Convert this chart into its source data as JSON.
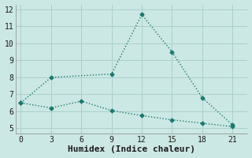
{
  "xlabel": "Humidex (Indice chaleur)",
  "line1_x": [
    0,
    3,
    9,
    12,
    15,
    18,
    21
  ],
  "line1_y": [
    6.5,
    8.0,
    8.2,
    11.7,
    9.5,
    6.8,
    5.2
  ],
  "line2_x": [
    0,
    3,
    6,
    9,
    12,
    15,
    18,
    21
  ],
  "line2_y": [
    6.5,
    6.2,
    6.6,
    6.05,
    5.75,
    5.5,
    5.3,
    5.1
  ],
  "line_color": "#1a7a6e",
  "bg_color": "#cce8e4",
  "grid_color": "#aacfcc",
  "xlim": [
    -0.5,
    22.5
  ],
  "ylim": [
    4.7,
    12.3
  ],
  "xticks": [
    0,
    3,
    6,
    9,
    12,
    15,
    18,
    21
  ],
  "yticks": [
    5,
    6,
    7,
    8,
    9,
    10,
    11,
    12
  ],
  "marker": "D",
  "marker_size": 2.5,
  "linewidth": 1.0,
  "tick_fontsize": 7,
  "xlabel_fontsize": 8
}
